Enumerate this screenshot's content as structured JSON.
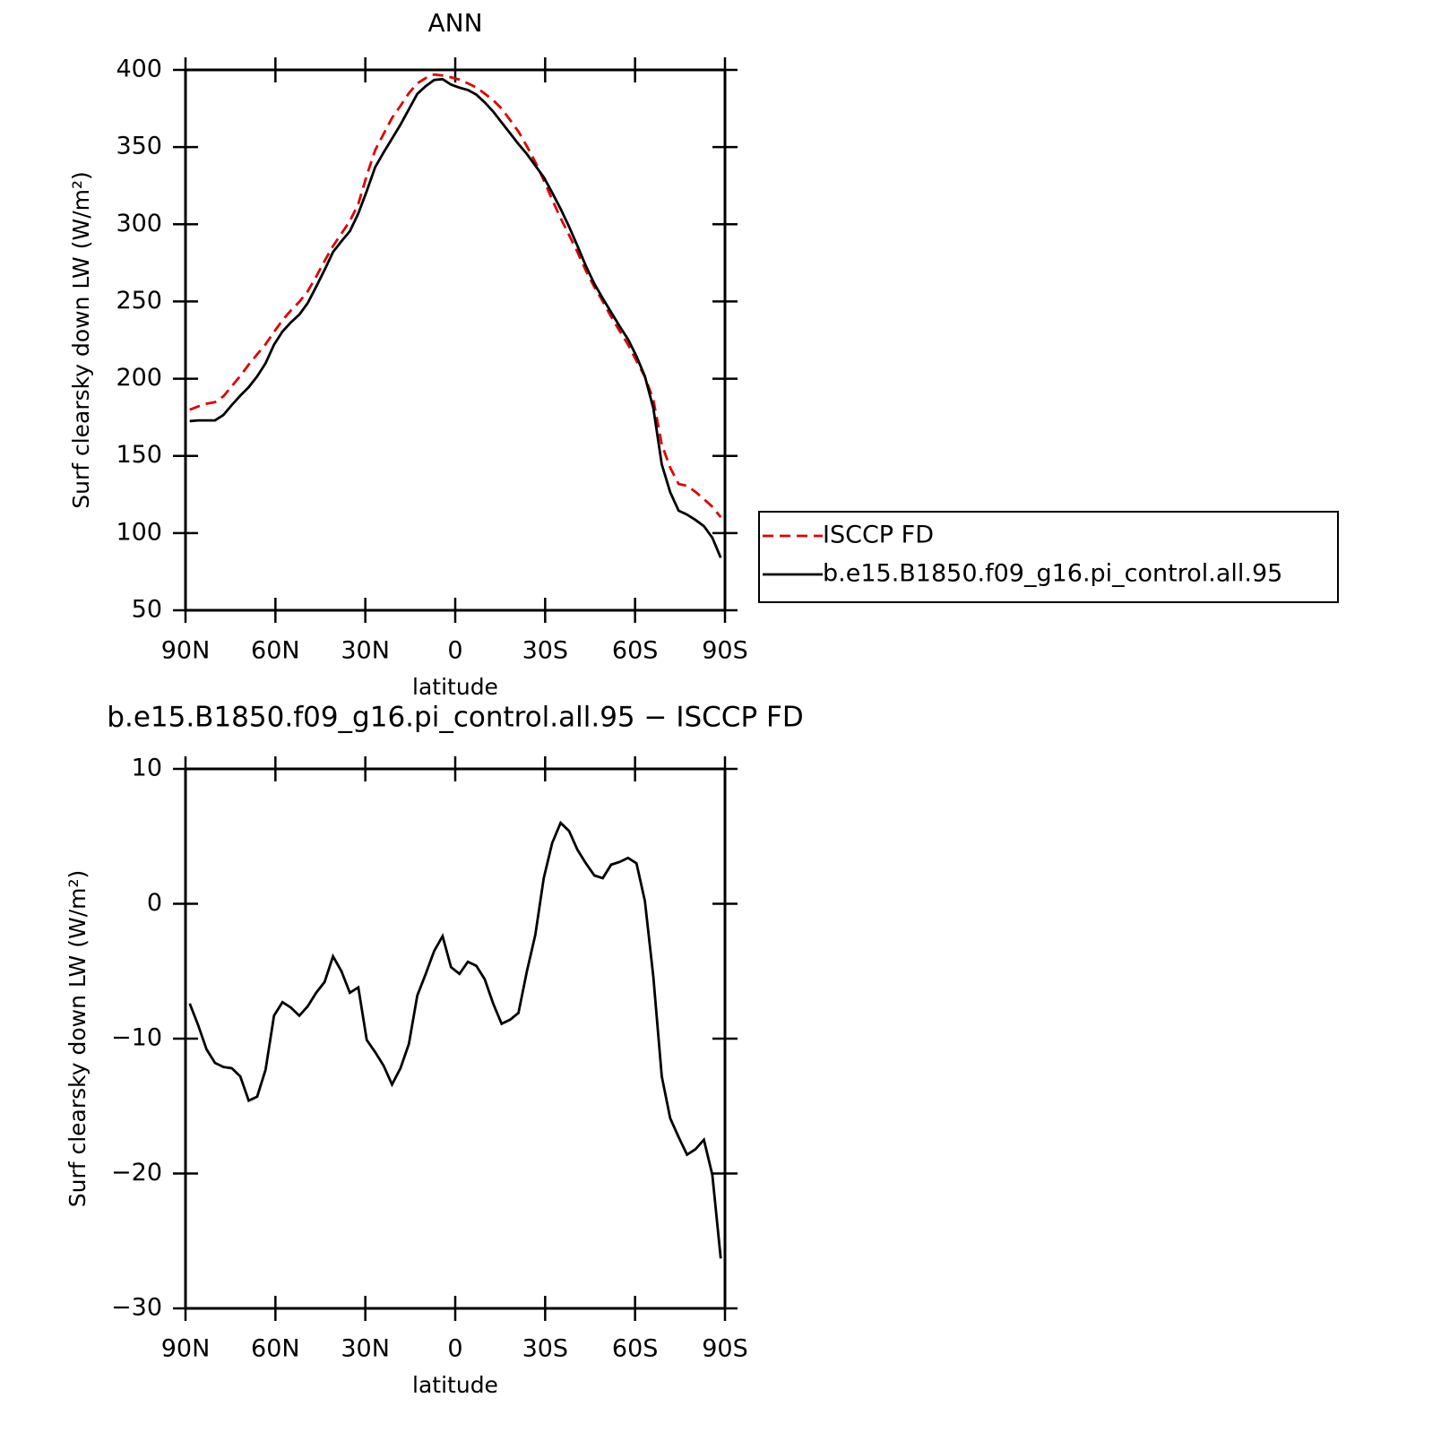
{
  "chart_data": [
    {
      "type": "line",
      "title": "ANN",
      "xlabel": "latitude",
      "ylabel": "Surf clearsky down LW (W/m²)",
      "x": [
        88.59,
        85.78,
        82.97,
        80.16,
        77.34,
        74.53,
        71.72,
        68.91,
        66.09,
        63.28,
        60.47,
        57.66,
        54.84,
        52.03,
        49.22,
        46.41,
        43.59,
        40.78,
        37.97,
        35.16,
        32.34,
        29.53,
        26.72,
        23.91,
        21.09,
        18.28,
        15.47,
        12.66,
        9.84,
        7.03,
        4.22,
        1.41,
        -1.41,
        -4.22,
        -7.03,
        -9.84,
        -12.66,
        -15.47,
        -18.28,
        -21.09,
        -23.91,
        -26.72,
        -29.53,
        -32.34,
        -35.16,
        -37.97,
        -40.78,
        -43.59,
        -46.41,
        -49.22,
        -52.03,
        -54.84,
        -57.66,
        -60.47,
        -63.28,
        -66.09,
        -68.91,
        -71.72,
        -74.53,
        -77.34,
        -80.16,
        -82.97,
        -85.78,
        -88.59
      ],
      "series": [
        {
          "name": "ISCCP FD",
          "color": "#e00000",
          "line_style": "dashed",
          "values": [
            179.9,
            182,
            183.8,
            184.8,
            188.6,
            195.2,
            201.8,
            209.1,
            215.8,
            222.3,
            230.3,
            237.8,
            244.2,
            249.8,
            256.6,
            266.1,
            276.3,
            285.9,
            294,
            302.1,
            313.2,
            331.6,
            348,
            358.5,
            368.9,
            376.7,
            384.9,
            391.3,
            394.7,
            397,
            396.4,
            395.2,
            393.7,
            391.3,
            388.6,
            384.6,
            380.4,
            374.9,
            367.6,
            360.1,
            350.5,
            340.3,
            328.6,
            316,
            304,
            293.1,
            282,
            270,
            259.4,
            250.1,
            240.1,
            230.9,
            222.1,
            211.5,
            201.3,
            186.4,
            157.3,
            142.4,
            131.8,
            130.6,
            126.7,
            122,
            117.1,
            110.3
          ]
        },
        {
          "name": "b.e15.B1850.f09_g16.pi_control.all.95",
          "color": "#000000",
          "line_style": "solid",
          "values": [
            172.5,
            173,
            173,
            173,
            176.5,
            183,
            189,
            194.5,
            201.5,
            210,
            222,
            230.5,
            236.5,
            241.5,
            249,
            259.5,
            270.5,
            282,
            289,
            295.5,
            307,
            321.5,
            337,
            346.5,
            355.5,
            364.5,
            374.5,
            384.5,
            389.5,
            393.5,
            394,
            390.5,
            388.5,
            387,
            384,
            379,
            373,
            366,
            359,
            352,
            345.5,
            338,
            330.5,
            320.5,
            310,
            298.5,
            286,
            273,
            261.5,
            252,
            243,
            234,
            225.5,
            214.5,
            201.5,
            181,
            144.5,
            126.5,
            114.5,
            112,
            108.5,
            104.5,
            97,
            84
          ]
        }
      ],
      "xlim": [
        90,
        -90
      ],
      "xticks": [
        {
          "value": 90,
          "label": "90N"
        },
        {
          "value": 60,
          "label": "60N"
        },
        {
          "value": 30,
          "label": "30N"
        },
        0,
        {
          "value": -30,
          "label": "30S"
        },
        {
          "value": -60,
          "label": "60S"
        },
        {
          "value": -90,
          "label": "90S"
        }
      ],
      "ylim": [
        50,
        400
      ],
      "yticks": [
        50,
        100,
        150,
        200,
        250,
        300,
        350,
        400
      ]
    },
    {
      "type": "line",
      "title": "b.e15.B1850.f09_g16.pi_control.all.95 − ISCCP FD",
      "xlabel": "latitude",
      "ylabel": "Surf clearsky down LW (W/m²)",
      "x": [
        88.59,
        85.78,
        82.97,
        80.16,
        77.34,
        74.53,
        71.72,
        68.91,
        66.09,
        63.28,
        60.47,
        57.66,
        54.84,
        52.03,
        49.22,
        46.41,
        43.59,
        40.78,
        37.97,
        35.16,
        32.34,
        29.53,
        26.72,
        23.91,
        21.09,
        18.28,
        15.47,
        12.66,
        9.84,
        7.03,
        4.22,
        1.41,
        -1.41,
        -4.22,
        -7.03,
        -9.84,
        -12.66,
        -15.47,
        -18.28,
        -21.09,
        -23.91,
        -26.72,
        -29.53,
        -32.34,
        -35.16,
        -37.97,
        -40.78,
        -43.59,
        -46.41,
        -49.22,
        -52.03,
        -54.84,
        -57.66,
        -60.47,
        -63.28,
        -66.09,
        -68.91,
        -71.72,
        -74.53,
        -77.34,
        -80.16,
        -82.97,
        -85.78,
        -88.59
      ],
      "color": "#000000",
      "values": [
        -7.4,
        -9.0,
        -10.8,
        -11.8,
        -12.1,
        -12.2,
        -12.8,
        -14.6,
        -14.3,
        -12.3,
        -8.3,
        -7.3,
        -7.7,
        -8.3,
        -7.6,
        -6.6,
        -5.8,
        -3.9,
        -5.0,
        -6.6,
        -6.2,
        -10.1,
        -11.0,
        -12.0,
        -13.4,
        -12.2,
        -10.4,
        -6.8,
        -5.2,
        -3.5,
        -2.4,
        -4.7,
        -5.2,
        -4.3,
        -4.6,
        -5.6,
        -7.4,
        -8.9,
        -8.6,
        -8.1,
        -5.0,
        -2.3,
        1.9,
        4.5,
        6.0,
        5.4,
        4.0,
        3.0,
        2.1,
        1.9,
        2.9,
        3.1,
        3.4,
        3.0,
        0.2,
        -5.4,
        -12.8,
        -15.9,
        -17.3,
        -18.6,
        -18.2,
        -17.5,
        -20.1,
        -26.3
      ],
      "xlim": [
        90,
        -90
      ],
      "xticks": [
        {
          "value": 90,
          "label": "90N"
        },
        {
          "value": 60,
          "label": "60N"
        },
        {
          "value": 30,
          "label": "30N"
        },
        0,
        {
          "value": -30,
          "label": "30S"
        },
        {
          "value": -60,
          "label": "60S"
        },
        {
          "value": -90,
          "label": "90S"
        }
      ],
      "ylim": [
        -30,
        10
      ],
      "yticks": [
        {
          "value": -30,
          "label": "−30"
        },
        {
          "value": -20,
          "label": "−20"
        },
        {
          "value": -10,
          "label": "−10"
        },
        0,
        10
      ]
    }
  ]
}
